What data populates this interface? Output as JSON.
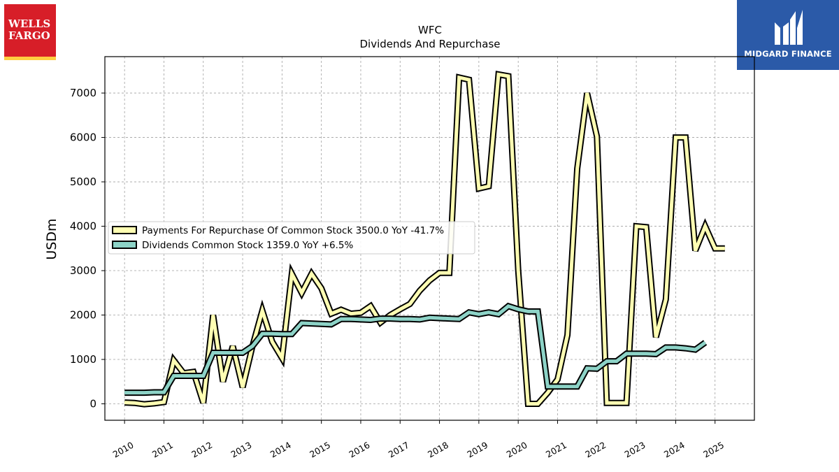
{
  "logos": {
    "left": {
      "line1": "WELLS",
      "line2": "FARGO"
    },
    "right": {
      "text": "MIDGARD FINANCE"
    }
  },
  "chart_data": {
    "type": "line",
    "title": "WFC",
    "subtitle": "Dividends And Repurchase",
    "ylabel": "USDm",
    "xlabel": "",
    "xlim": [
      2009.5,
      2026.0
    ],
    "ylim": [
      -370,
      7820
    ],
    "x_ticks": [
      "2010",
      "2011",
      "2012",
      "2013",
      "2014",
      "2015",
      "2016",
      "2017",
      "2018",
      "2019",
      "2020",
      "2021",
      "2022",
      "2023",
      "2024",
      "2025"
    ],
    "y_ticks": [
      0,
      1000,
      2000,
      3000,
      4000,
      5000,
      6000,
      7000
    ],
    "grid": true,
    "legend_position": "center-left",
    "series": [
      {
        "name": "Payments For Repurchase Of Common Stock  3500.0 YoY -41.7%",
        "color": "#ffffb3",
        "x": [
          2010.0,
          2010.25,
          2010.5,
          2010.75,
          2011.0,
          2011.25,
          2011.5,
          2011.75,
          2012.0,
          2012.25,
          2012.5,
          2012.75,
          2013.0,
          2013.25,
          2013.5,
          2013.75,
          2014.0,
          2014.25,
          2014.5,
          2014.75,
          2015.0,
          2015.25,
          2015.5,
          2015.75,
          2016.0,
          2016.25,
          2016.5,
          2016.75,
          2017.0,
          2017.25,
          2017.5,
          2017.75,
          2018.0,
          2018.25,
          2018.5,
          2018.75,
          2019.0,
          2019.25,
          2019.5,
          2019.75,
          2020.0,
          2020.25,
          2020.5,
          2020.75,
          2021.0,
          2021.25,
          2021.5,
          2021.75,
          2022.0,
          2022.25,
          2022.5,
          2022.75,
          2023.0,
          2023.25,
          2023.5,
          2023.75,
          2024.0,
          2024.25,
          2024.5,
          2024.75,
          2025.0,
          2025.25
        ],
        "values": [
          30,
          20,
          -10,
          10,
          40,
          980,
          690,
          720,
          20,
          2000,
          500,
          1300,
          370,
          1300,
          2100,
          1400,
          1030,
          2930,
          2500,
          2930,
          2600,
          2030,
          2120,
          2030,
          2050,
          2200,
          1830,
          2000,
          2130,
          2250,
          2550,
          2780,
          2950,
          2950,
          7350,
          7300,
          4850,
          4900,
          7420,
          7380,
          3000,
          0,
          0,
          250,
          550,
          1550,
          5300,
          7000,
          6020,
          20,
          20,
          20,
          4000,
          3980,
          1500,
          2350,
          6000,
          6000,
          3450,
          4000,
          3500,
          3500
        ]
      },
      {
        "name": "Dividends Common Stock  1359.0 YoY +6.5%",
        "color": "#8dd3c7",
        "x": [
          2010.0,
          2010.25,
          2010.5,
          2010.75,
          2011.0,
          2011.25,
          2011.5,
          2011.75,
          2012.0,
          2012.25,
          2012.5,
          2012.75,
          2013.0,
          2013.25,
          2013.5,
          2013.75,
          2014.0,
          2014.25,
          2014.5,
          2014.75,
          2015.0,
          2015.25,
          2015.5,
          2015.75,
          2016.0,
          2016.25,
          2016.5,
          2016.75,
          2017.0,
          2017.25,
          2017.5,
          2017.75,
          2018.0,
          2018.25,
          2018.5,
          2018.75,
          2019.0,
          2019.25,
          2019.5,
          2019.75,
          2020.0,
          2020.25,
          2020.5,
          2020.75,
          2021.0,
          2021.25,
          2021.5,
          2021.75,
          2022.0,
          2022.25,
          2022.5,
          2022.75,
          2023.0,
          2023.25,
          2023.5,
          2023.75,
          2024.0,
          2024.25,
          2024.5,
          2024.75
        ],
        "values": [
          250,
          250,
          250,
          260,
          260,
          630,
          630,
          630,
          630,
          1150,
          1150,
          1150,
          1150,
          1300,
          1580,
          1580,
          1570,
          1570,
          1820,
          1810,
          1800,
          1790,
          1910,
          1910,
          1900,
          1890,
          1920,
          1920,
          1910,
          1910,
          1900,
          1940,
          1930,
          1920,
          1910,
          2060,
          2020,
          2060,
          2020,
          2200,
          2130,
          2080,
          2080,
          390,
          390,
          390,
          390,
          800,
          790,
          960,
          960,
          1130,
          1130,
          1130,
          1120,
          1270,
          1270,
          1250,
          1220,
          1380
        ]
      }
    ]
  }
}
